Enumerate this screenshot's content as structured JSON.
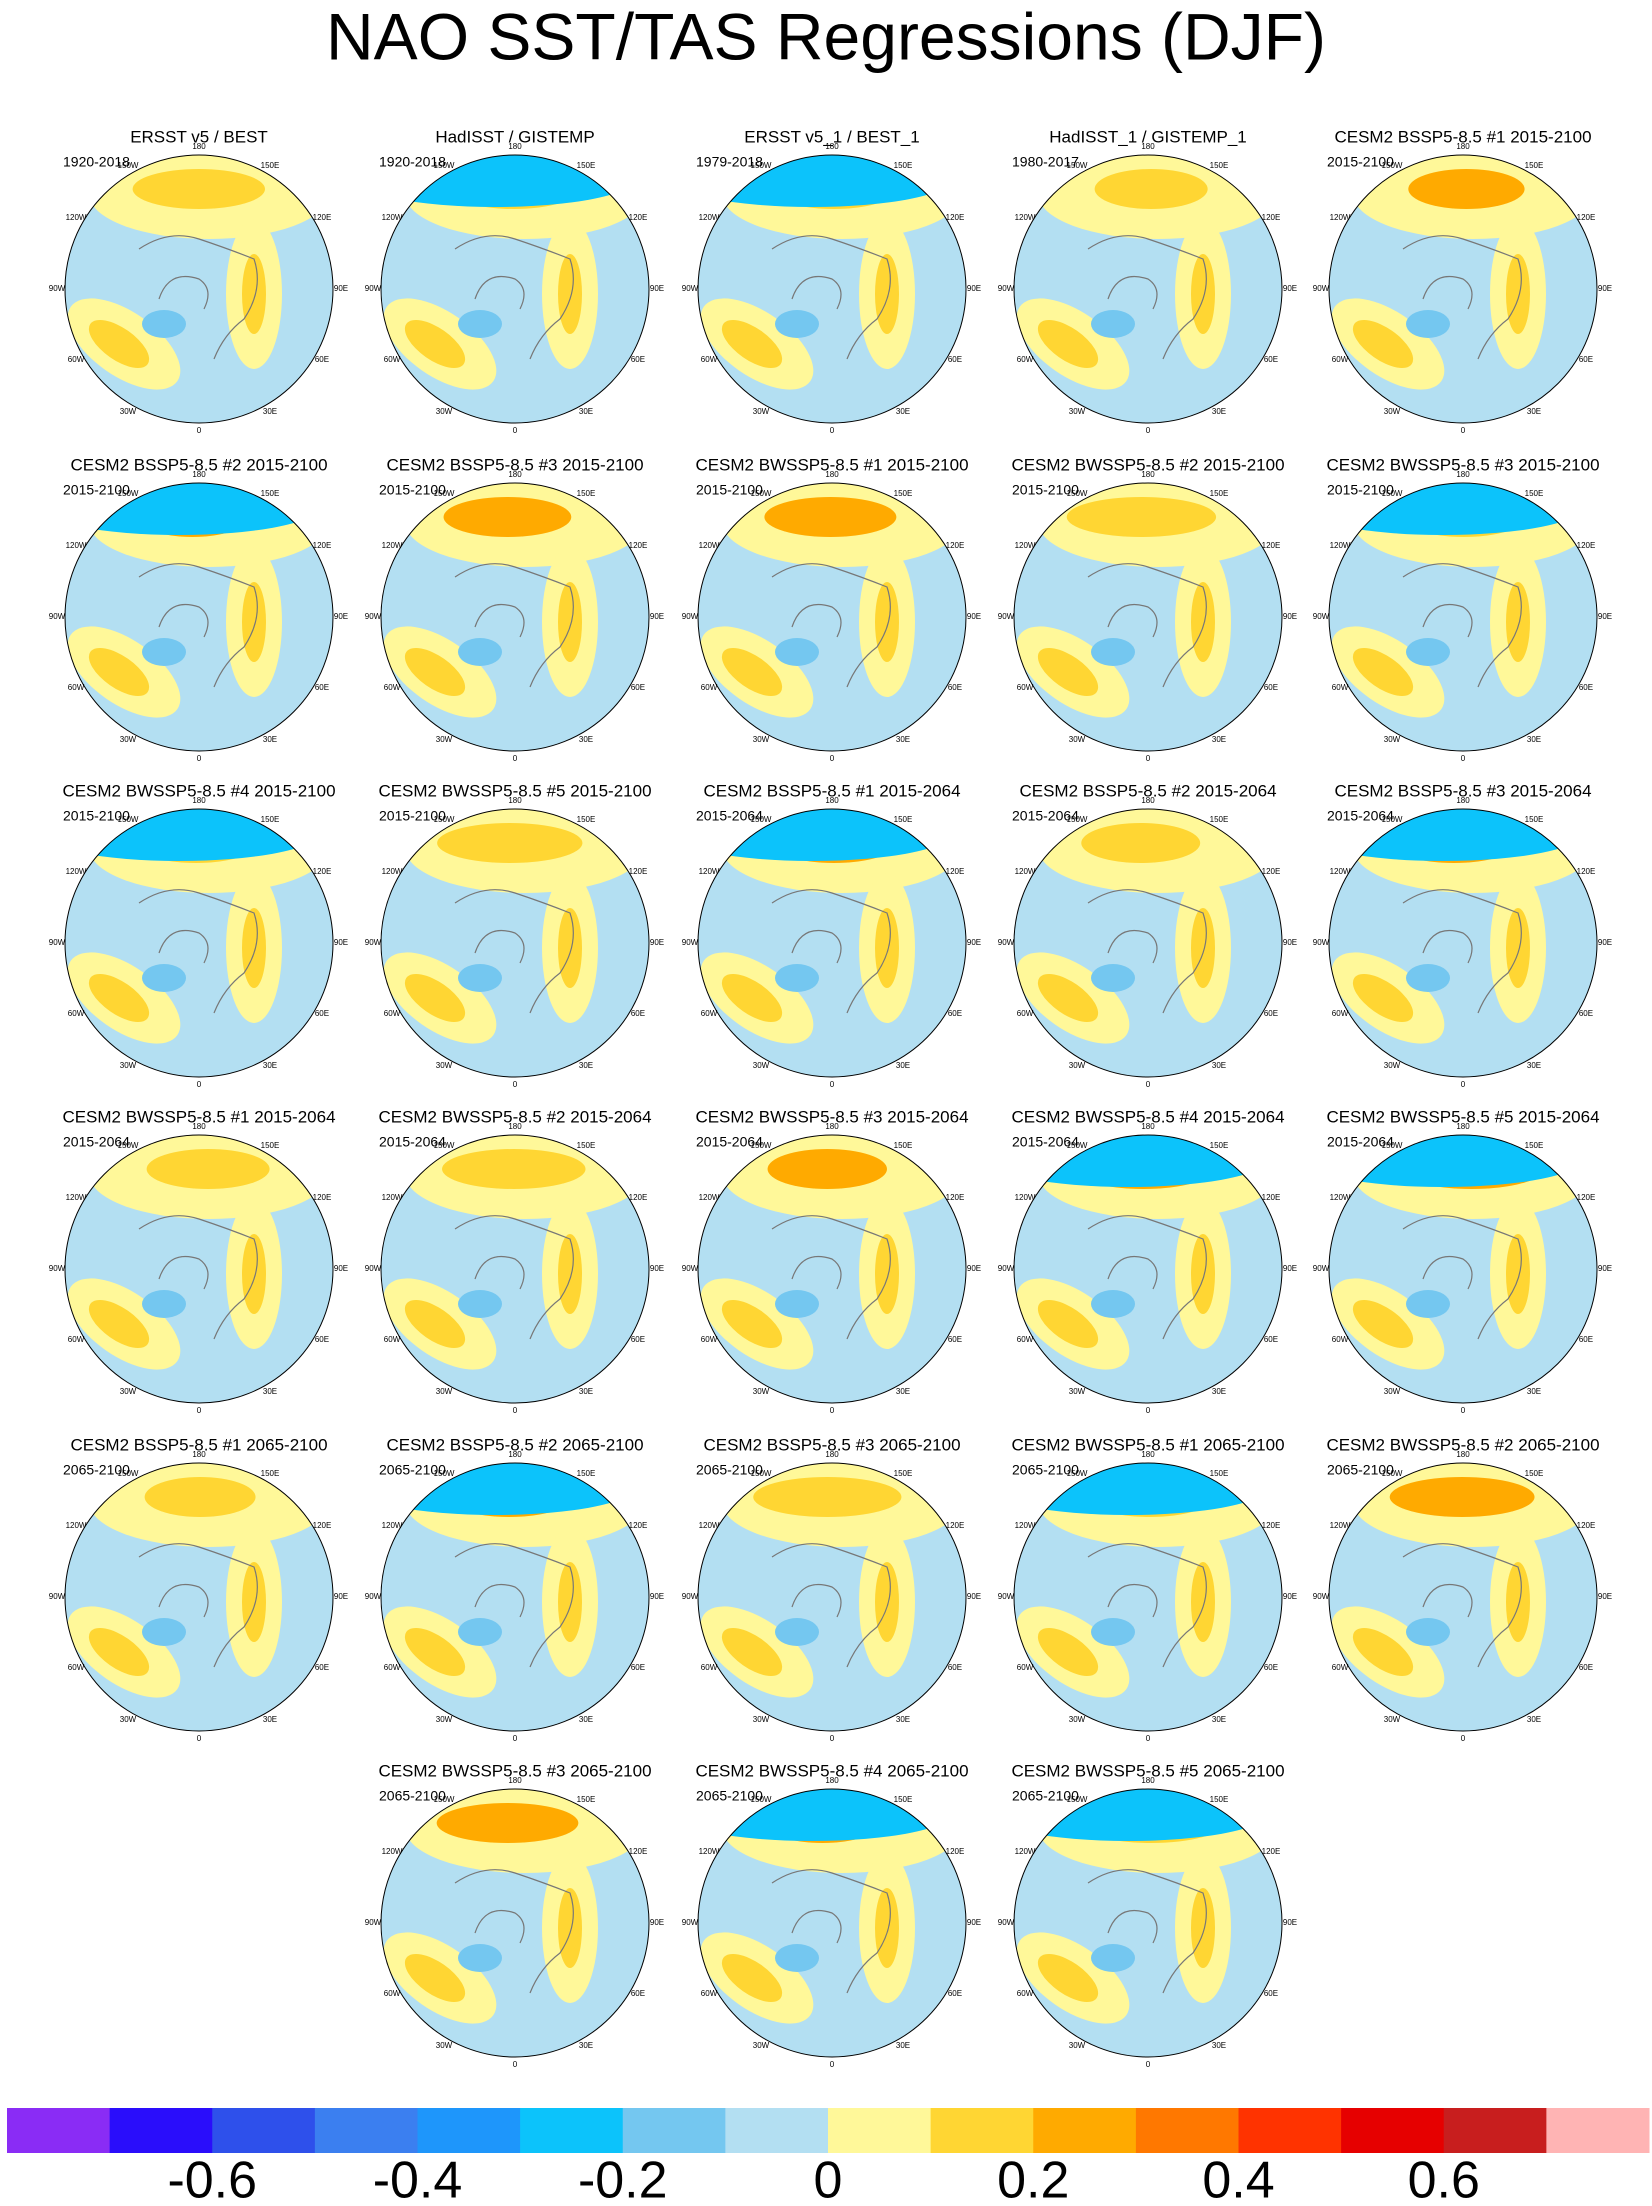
{
  "title": "NAO SST/TAS Regressions (DJF)",
  "panels": [
    {
      "title": "ERSST v5 / BEST",
      "period": "1920-2018"
    },
    {
      "title": "HadISST / GISTEMP",
      "period": "1920-2018"
    },
    {
      "title": "ERSST v5_1 / BEST_1",
      "period": "1979-2018"
    },
    {
      "title": "HadISST_1 / GISTEMP_1",
      "period": "1980-2017"
    },
    {
      "title": "CESM2 BSSP5-8.5 #1 2015-2100",
      "period": "2015-2100"
    },
    {
      "title": "CESM2 BSSP5-8.5 #2 2015-2100",
      "period": "2015-2100"
    },
    {
      "title": "CESM2 BSSP5-8.5 #3 2015-2100",
      "period": "2015-2100"
    },
    {
      "title": "CESM2 BWSSP5-8.5 #1 2015-2100",
      "period": "2015-2100"
    },
    {
      "title": "CESM2 BWSSP5-8.5 #2 2015-2100",
      "period": "2015-2100"
    },
    {
      "title": "CESM2 BWSSP5-8.5 #3 2015-2100",
      "period": "2015-2100"
    },
    {
      "title": "CESM2 BWSSP5-8.5 #4 2015-2100",
      "period": "2015-2100"
    },
    {
      "title": "CESM2 BWSSP5-8.5 #5 2015-2100",
      "period": "2015-2100"
    },
    {
      "title": "CESM2 BSSP5-8.5 #1 2015-2064",
      "period": "2015-2064"
    },
    {
      "title": "CESM2 BSSP5-8.5 #2 2015-2064",
      "period": "2015-2064"
    },
    {
      "title": "CESM2 BSSP5-8.5 #3 2015-2064",
      "period": "2015-2064"
    },
    {
      "title": "CESM2 BWSSP5-8.5 #1 2015-2064",
      "period": "2015-2064"
    },
    {
      "title": "CESM2 BWSSP5-8.5 #2 2015-2064",
      "period": "2015-2064"
    },
    {
      "title": "CESM2 BWSSP5-8.5 #3 2015-2064",
      "period": "2015-2064"
    },
    {
      "title": "CESM2 BWSSP5-8.5 #4 2015-2064",
      "period": "2015-2064"
    },
    {
      "title": "CESM2 BWSSP5-8.5 #5 2015-2064",
      "period": "2015-2064"
    },
    {
      "title": "CESM2 BSSP5-8.5 #1 2065-2100",
      "period": "2065-2100"
    },
    {
      "title": "CESM2 BSSP5-8.5 #2 2065-2100",
      "period": "2065-2100"
    },
    {
      "title": "CESM2 BSSP5-8.5 #3 2065-2100",
      "period": "2065-2100"
    },
    {
      "title": "CESM2 BWSSP5-8.5 #1 2065-2100",
      "period": "2065-2100"
    },
    {
      "title": "CESM2 BWSSP5-8.5 #2 2065-2100",
      "period": "2065-2100"
    },
    {
      "title": "CESM2 BWSSP5-8.5 #3 2065-2100",
      "period": "2065-2100"
    },
    {
      "title": "CESM2 BWSSP5-8.5 #4 2065-2100",
      "period": "2065-2100"
    },
    {
      "title": "CESM2 BWSSP5-8.5 #5 2065-2100",
      "period": "2065-2100"
    }
  ],
  "lon_labels": [
    "180",
    "150E",
    "120E",
    "90E",
    "60E",
    "30E",
    "0",
    "30W",
    "60W",
    "90W",
    "120W",
    "150W"
  ],
  "colorbar": {
    "xlim": [
      -0.8,
      0.8
    ],
    "ticks": [
      -0.6,
      -0.4,
      -0.2,
      0,
      0.2,
      0.4,
      0.6
    ],
    "colors": [
      "#8a2cf5",
      "#2a0dfb",
      "#2e50eb",
      "#3b7ff0",
      "#1e96fb",
      "#0cc3fb",
      "#74c7f0",
      "#b3dff2",
      "#fff899",
      "#ffd633",
      "#ffaa00",
      "#ff7800",
      "#ff3300",
      "#e60000",
      "#c81e1e",
      "#ffb4b4"
    ]
  }
}
